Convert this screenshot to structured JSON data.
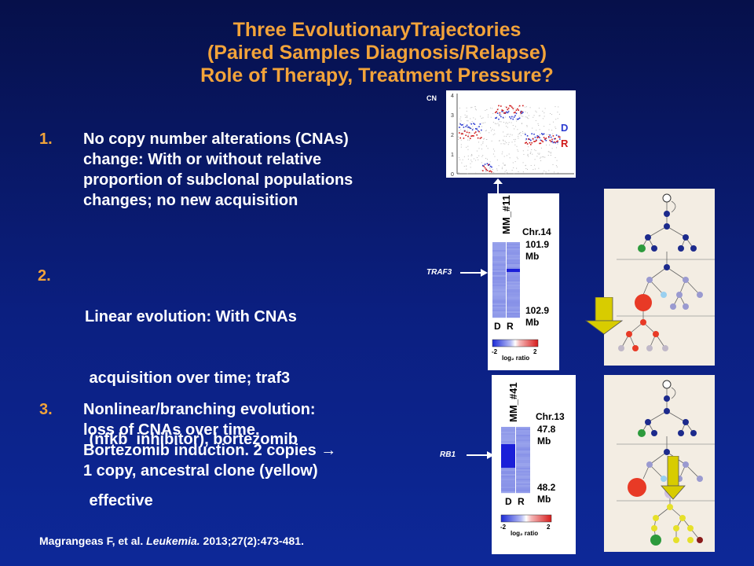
{
  "title": {
    "line1": "Three EvolutionaryTrajectories",
    "line2": "(Paired Samples Diagnosis/Relapse)",
    "line3": "Role of Therapy, Treatment Pressure?"
  },
  "points": [
    {
      "number": "1.",
      "lines": [
        "No copy number alterations (CNAs)",
        "change: With or without relative",
        "proportion of subclonal populations",
        "changes; no new acquisition"
      ]
    },
    {
      "number": "2.",
      "lines": [
        "Linear evolution: With CNAs",
        " acquisition over time; traf3",
        " (nfkb  inhibitor), bortezomib",
        " effective"
      ]
    },
    {
      "number": "3.",
      "lines": [
        "Nonlinear/branching evolution:",
        "loss of CNAs over time.",
        "Bortezomib induction. 2 copies →",
        "1 copy, ancestral clone (yellow)"
      ]
    }
  ],
  "citation": {
    "authors": "Magrangeas F, et al.",
    "journal": "Leukemia.",
    "rest": "2013;27(2):473-481."
  },
  "cn_plot": {
    "axis_label": "CN",
    "yticks": [
      "0",
      "1",
      "2",
      "3",
      "4"
    ],
    "legend_d": "D",
    "legend_r": "R",
    "colors": {
      "d": "#2a3ad0",
      "r": "#d01818"
    }
  },
  "heatmap1": {
    "sample": "MM_#11",
    "chr": "Chr.14",
    "top": "101.9",
    "top_unit": "Mb",
    "bottom": "102.9",
    "bottom_unit": "Mb",
    "col_d": "D",
    "col_r": "R",
    "scale_min": "-2",
    "scale_max": "2",
    "scale_label": "log₂ ratio",
    "gene": "TRAF3"
  },
  "heatmap2": {
    "sample": "MM_#41",
    "chr": "Chr.13",
    "top": "47.8",
    "top_unit": "Mb",
    "bottom": "48.2",
    "bottom_unit": "Mb",
    "col_d": "D",
    "col_r": "R",
    "scale_min": "-2",
    "scale_max": "2",
    "scale_label": "log₂ ratio",
    "gene": "RB1"
  },
  "colors": {
    "accent": "#f2a33a",
    "arrow": "#d8cc00"
  }
}
